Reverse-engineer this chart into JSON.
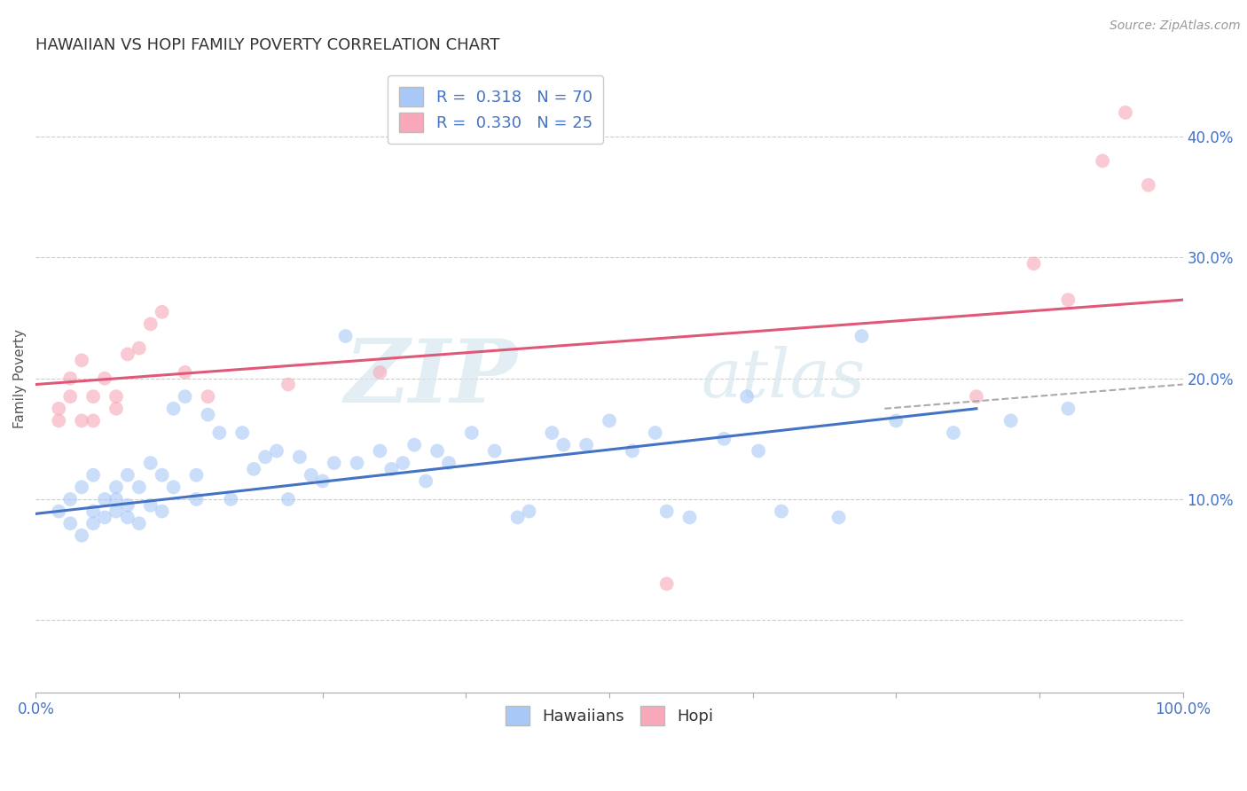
{
  "title": "HAWAIIAN VS HOPI FAMILY POVERTY CORRELATION CHART",
  "source": "Source: ZipAtlas.com",
  "ylabel": "Family Poverty",
  "xlim": [
    0.0,
    1.0
  ],
  "ylim": [
    -0.06,
    0.46
  ],
  "xticks": [
    0.0,
    0.125,
    0.25,
    0.375,
    0.5,
    0.625,
    0.75,
    0.875,
    1.0
  ],
  "xticklabels": [
    "0.0%",
    "",
    "",
    "",
    "",
    "",
    "",
    "",
    "100.0%"
  ],
  "yticks": [
    0.0,
    0.1,
    0.2,
    0.3,
    0.4
  ],
  "yticklabels_left": [
    "",
    "",
    "",
    "",
    ""
  ],
  "yticklabels_right": [
    "",
    "10.0%",
    "20.0%",
    "30.0%",
    "40.0%"
  ],
  "hawaiian_color": "#a8c8f8",
  "hopi_color": "#f8a8b8",
  "line_hawaiian": "#4472c4",
  "line_hopi": "#e05878",
  "line_dashed_color": "#aaaaaa",
  "background_color": "#ffffff",
  "grid_color": "#cccccc",
  "watermark_zip": "ZIP",
  "watermark_atlas": "atlas",
  "tick_color_right": "#4472c4",
  "tick_color_x": "#4472c4",
  "hawaiian_scatter": [
    [
      0.02,
      0.09
    ],
    [
      0.03,
      0.08
    ],
    [
      0.03,
      0.1
    ],
    [
      0.04,
      0.07
    ],
    [
      0.04,
      0.11
    ],
    [
      0.05,
      0.08
    ],
    [
      0.05,
      0.09
    ],
    [
      0.05,
      0.12
    ],
    [
      0.06,
      0.085
    ],
    [
      0.06,
      0.1
    ],
    [
      0.07,
      0.09
    ],
    [
      0.07,
      0.1
    ],
    [
      0.07,
      0.11
    ],
    [
      0.08,
      0.085
    ],
    [
      0.08,
      0.095
    ],
    [
      0.08,
      0.12
    ],
    [
      0.09,
      0.08
    ],
    [
      0.09,
      0.11
    ],
    [
      0.1,
      0.095
    ],
    [
      0.1,
      0.13
    ],
    [
      0.11,
      0.09
    ],
    [
      0.11,
      0.12
    ],
    [
      0.12,
      0.11
    ],
    [
      0.12,
      0.175
    ],
    [
      0.13,
      0.185
    ],
    [
      0.14,
      0.1
    ],
    [
      0.14,
      0.12
    ],
    [
      0.15,
      0.17
    ],
    [
      0.16,
      0.155
    ],
    [
      0.17,
      0.1
    ],
    [
      0.18,
      0.155
    ],
    [
      0.19,
      0.125
    ],
    [
      0.2,
      0.135
    ],
    [
      0.21,
      0.14
    ],
    [
      0.22,
      0.1
    ],
    [
      0.23,
      0.135
    ],
    [
      0.24,
      0.12
    ],
    [
      0.25,
      0.115
    ],
    [
      0.26,
      0.13
    ],
    [
      0.27,
      0.235
    ],
    [
      0.28,
      0.13
    ],
    [
      0.3,
      0.14
    ],
    [
      0.31,
      0.125
    ],
    [
      0.32,
      0.13
    ],
    [
      0.33,
      0.145
    ],
    [
      0.34,
      0.115
    ],
    [
      0.35,
      0.14
    ],
    [
      0.36,
      0.13
    ],
    [
      0.38,
      0.155
    ],
    [
      0.4,
      0.14
    ],
    [
      0.42,
      0.085
    ],
    [
      0.43,
      0.09
    ],
    [
      0.45,
      0.155
    ],
    [
      0.46,
      0.145
    ],
    [
      0.48,
      0.145
    ],
    [
      0.5,
      0.165
    ],
    [
      0.52,
      0.14
    ],
    [
      0.54,
      0.155
    ],
    [
      0.55,
      0.09
    ],
    [
      0.57,
      0.085
    ],
    [
      0.6,
      0.15
    ],
    [
      0.62,
      0.185
    ],
    [
      0.63,
      0.14
    ],
    [
      0.65,
      0.09
    ],
    [
      0.7,
      0.085
    ],
    [
      0.72,
      0.235
    ],
    [
      0.75,
      0.165
    ],
    [
      0.8,
      0.155
    ],
    [
      0.85,
      0.165
    ],
    [
      0.9,
      0.175
    ]
  ],
  "hopi_scatter": [
    [
      0.02,
      0.165
    ],
    [
      0.02,
      0.175
    ],
    [
      0.03,
      0.185
    ],
    [
      0.03,
      0.2
    ],
    [
      0.04,
      0.165
    ],
    [
      0.04,
      0.215
    ],
    [
      0.05,
      0.165
    ],
    [
      0.05,
      0.185
    ],
    [
      0.06,
      0.2
    ],
    [
      0.07,
      0.175
    ],
    [
      0.07,
      0.185
    ],
    [
      0.08,
      0.22
    ],
    [
      0.09,
      0.225
    ],
    [
      0.1,
      0.245
    ],
    [
      0.11,
      0.255
    ],
    [
      0.13,
      0.205
    ],
    [
      0.15,
      0.185
    ],
    [
      0.22,
      0.195
    ],
    [
      0.3,
      0.205
    ],
    [
      0.55,
      0.03
    ],
    [
      0.82,
      0.185
    ],
    [
      0.87,
      0.295
    ],
    [
      0.9,
      0.265
    ],
    [
      0.93,
      0.38
    ],
    [
      0.95,
      0.42
    ],
    [
      0.97,
      0.36
    ]
  ],
  "hawaiian_line_x": [
    0.0,
    0.82
  ],
  "hawaiian_line_y": [
    0.088,
    0.175
  ],
  "hopi_line_x": [
    0.0,
    1.0
  ],
  "hopi_line_y": [
    0.195,
    0.265
  ],
  "dashed_line_x": [
    0.74,
    1.0
  ],
  "dashed_line_y": [
    0.175,
    0.195
  ],
  "title_fontsize": 13,
  "axis_fontsize": 11,
  "tick_fontsize": 12,
  "legend_fontsize": 13,
  "dot_size": 130,
  "dot_alpha": 0.6
}
